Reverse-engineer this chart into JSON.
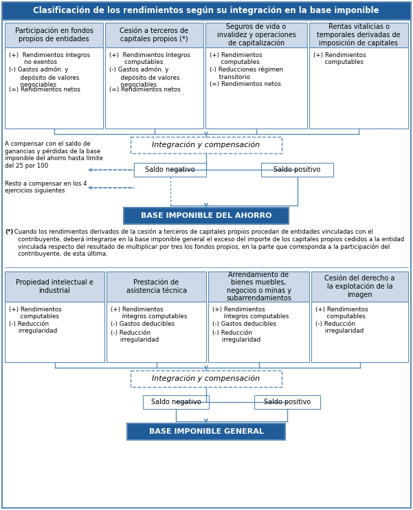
{
  "title": "Clasificación de los rendimientos según su integración en la base imponible",
  "title_bg": "#1f5c99",
  "title_color": "#ffffff",
  "box_bg_top": "#cdd9e8",
  "box_bg_bottom": "#cdd9e8",
  "box_border": "#5b8ab5",
  "arrow_color": "#5b8ab5",
  "base_ahorro_bg": "#1f5c99",
  "base_general_bg": "#1f5c99",
  "base_color": "#ffffff",
  "outer_border": "#5b8ab5",
  "footnote_marker": "(*)",
  "footnote_text": " Cuando los rendimientos derivados de la cesión a terceros de capitales propios procedan de entidades vinculadas con el\n   contribuyente, deberá integrarse en la base imponible general el exceso del importe de los capitales propios cedidos a la entidad\n   vinculada respecto del resultado de multiplicar por tres los fondos propios, en la parte que corresponda a la participación del\n   contribuyente, de esta última.",
  "top_boxes": [
    {
      "title": "Participación en fondos\npropios de entidades",
      "items": [
        "(+)  Rendimientos íntegros\n        no exentos",
        "(-) Gastos admón. y\n      depósito de valores\n      negociables",
        "(=) Rendimientos netos"
      ]
    },
    {
      "title": "Cesión a terceros de\ncapitales propios (*)",
      "items": [
        "(+)  Rendimientos íntegros\n        computables",
        "(-) Gastos admón. y\n      depósito de valores\n      negociables",
        "(=) Rendimientos netos"
      ]
    },
    {
      "title": "Seguros de vida o\ninvalidez y operaciones\nde capitalización",
      "items": [
        "(+) Rendimientos\n      computables",
        "(-) Reducciones régimen\n     transitorio",
        "(=) Rendimientos netos"
      ]
    },
    {
      "title": "Rentas vitalicias o\ntemporales derivadas de\nimposición de capitales",
      "items": [
        "(+) Rendimientos\n      computables"
      ]
    }
  ],
  "bottom_boxes": [
    {
      "title": "Propiedad intelectual e\nindustrial",
      "items": [
        "(+) Rendimientos\n      computables",
        "(-) Reducción\n     irregularidad"
      ]
    },
    {
      "title": "Prestación de\nasistencia técnica",
      "items": [
        "(+) Rendimientos\n      íntegros computables",
        "(-) Gastos deducibles",
        "(-) Reducción\n     irregularidad"
      ]
    },
    {
      "title": "Arrendamiento de\nbienes muebles,\nnegocios o minas y\nsubarrendamientos",
      "items": [
        "(+) Rendimientos\n      íntegros computables",
        "(-) Gastos deducibles",
        "(-) Reducción\n     irregularidad"
      ]
    },
    {
      "title": "Cesión del derecho a\nla explotación de la\nimagen",
      "items": [
        "(+) Rendimientos\n      computables",
        "(-) Reducción\n     irregularidad"
      ]
    }
  ],
  "left_note1": "A compensar con el saldo de\nganancias y pérdidas de la base\nimponible del ahorro hasta límite\ndel 25 por 100",
  "left_note2": "Resto a compensar en los 4\nejercicios siguientes"
}
